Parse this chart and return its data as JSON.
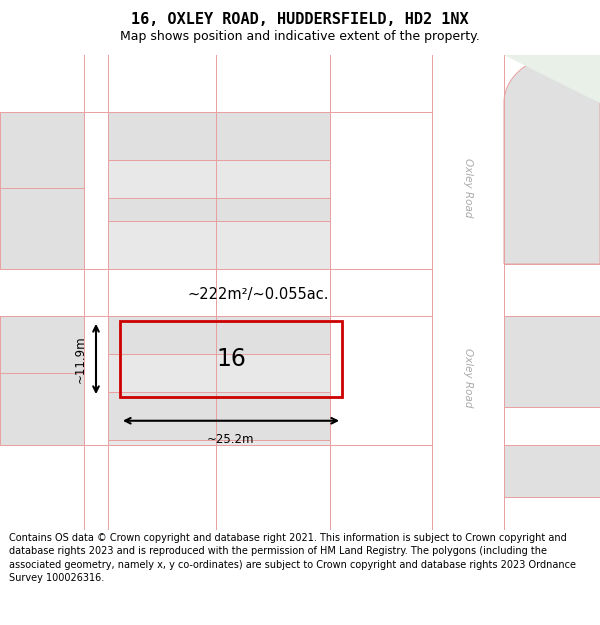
{
  "title": "16, OXLEY ROAD, HUDDERSFIELD, HD2 1NX",
  "subtitle": "Map shows position and indicative extent of the property.",
  "footer": "Contains OS data © Crown copyright and database right 2021. This information is subject to Crown copyright and database rights 2023 and is reproduced with the permission of HM Land Registry. The polygons (including the associated geometry, namely x, y co-ordinates) are subject to Crown copyright and database rights 2023 Ordnance Survey 100026316.",
  "bg_color": "#ffffff",
  "map_bg": "#f2f2ee",
  "road_color": "#ffffff",
  "building_fill": "#e0e0e0",
  "building_fill2": "#e8e8e8",
  "boundary_color": "#e8a0a0",
  "highlight_color": "#cc0000",
  "road_label_color": "#aaaaaa",
  "area_text": "~222m²/~0.055ac.",
  "property_label": "16",
  "width_label": "~25.2m",
  "height_label": "~11.9m",
  "title_fontsize": 11,
  "subtitle_fontsize": 9,
  "footer_fontsize": 7.0
}
